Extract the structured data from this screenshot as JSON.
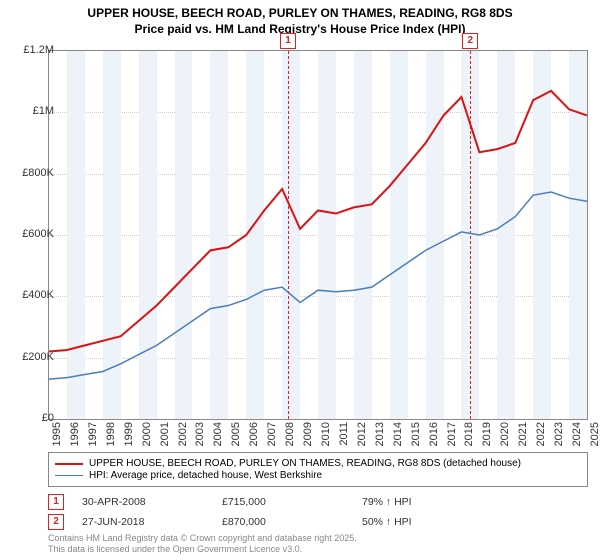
{
  "title_line1": "UPPER HOUSE, BEECH ROAD, PURLEY ON THAMES, READING, RG8 8DS",
  "title_line2": "Price paid vs. HM Land Registry's House Price Index (HPI)",
  "chart": {
    "type": "line",
    "background_color": "#ffffff",
    "plot_border_color": "#888888",
    "grid_color": "#cccccc",
    "band_color": "#eef3f9",
    "ylim": [
      0,
      1200000
    ],
    "ytick_step": 200000,
    "y_ticks": [
      "£0",
      "£200K",
      "£400K",
      "£600K",
      "£800K",
      "£1M",
      "£1.2M"
    ],
    "x_years": [
      1995,
      1996,
      1997,
      1998,
      1999,
      2000,
      2001,
      2002,
      2003,
      2004,
      2005,
      2006,
      2007,
      2008,
      2009,
      2010,
      2011,
      2012,
      2013,
      2014,
      2015,
      2016,
      2017,
      2018,
      2019,
      2020,
      2021,
      2022,
      2023,
      2024,
      2025
    ],
    "series": [
      {
        "name": "price_paid",
        "label": "UPPER HOUSE, BEECH ROAD, PURLEY ON THAMES, READING, RG8 8DS (detached house)",
        "color": "#dd1111",
        "width": 2,
        "values": [
          220000,
          225000,
          240000,
          255000,
          270000,
          320000,
          370000,
          430000,
          490000,
          550000,
          560000,
          600000,
          680000,
          750000,
          620000,
          680000,
          670000,
          690000,
          700000,
          760000,
          830000,
          900000,
          990000,
          1050000,
          870000,
          880000,
          900000,
          1040000,
          1070000,
          1010000,
          990000
        ]
      },
      {
        "name": "hpi",
        "label": "HPI: Average price, detached house, West Berkshire",
        "color": "#4a7ebb",
        "width": 1.5,
        "values": [
          130000,
          135000,
          145000,
          155000,
          180000,
          210000,
          240000,
          280000,
          320000,
          360000,
          370000,
          390000,
          420000,
          430000,
          380000,
          420000,
          415000,
          420000,
          430000,
          470000,
          510000,
          550000,
          580000,
          610000,
          600000,
          620000,
          660000,
          730000,
          740000,
          720000,
          710000
        ]
      }
    ],
    "markers": [
      {
        "n": "1",
        "year": 2008.33,
        "date": "30-APR-2008",
        "price": "£715,000",
        "pct": "79% ↑ HPI"
      },
      {
        "n": "2",
        "year": 2018.49,
        "date": "27-JUN-2018",
        "price": "£870,000",
        "pct": "50% ↑ HPI"
      }
    ],
    "marker_color": "#dd2222",
    "label_fontsize": 11,
    "title_fontsize": 12
  },
  "attribution_line1": "Contains HM Land Registry data © Crown copyright and database right 2025.",
  "attribution_line2": "This data is licensed under the Open Government Licence v3.0."
}
